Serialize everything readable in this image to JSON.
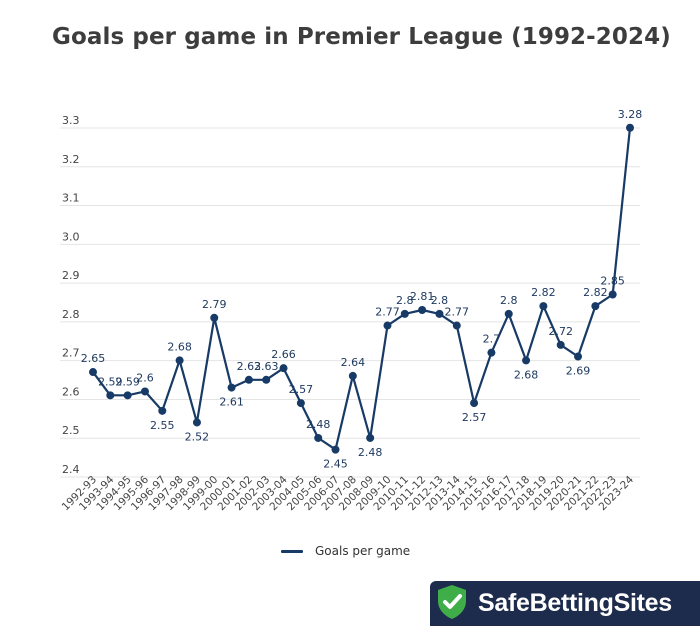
{
  "chart_data": {
    "type": "line",
    "title": "Goals per game in Premier League (1992-2024)",
    "xlabel": "",
    "ylabel": "",
    "ylim": [
      2.4,
      3.3
    ],
    "yticks": [
      "2.4",
      "2.5",
      "2.6",
      "2.7",
      "2.8",
      "2.9",
      "3.0",
      "3.1",
      "3.2",
      "3.3"
    ],
    "grid": true,
    "legend_position": "bottom-center",
    "categories": [
      "1992-93",
      "1993-94",
      "1994-95",
      "1995-96",
      "1996-97",
      "1997-98",
      "1998-99",
      "1999-00",
      "2000-01",
      "2001-02",
      "2002-03",
      "2003-04",
      "2004-05",
      "2005-06",
      "2006-07",
      "2007-08",
      "2008-09",
      "2009-10",
      "2010-11",
      "2011-12",
      "2012-13",
      "2013-14",
      "2014-15",
      "2015-16",
      "2016-17",
      "2017-18",
      "2018-19",
      "2019-20",
      "2020-21",
      "2021-22",
      "2022-23",
      "2023-24"
    ],
    "series": [
      {
        "name": "Goals per game",
        "color": "#173a66",
        "values": [
          2.65,
          2.59,
          2.59,
          2.6,
          2.55,
          2.68,
          2.52,
          2.79,
          2.61,
          2.63,
          2.63,
          2.66,
          2.57,
          2.48,
          2.45,
          2.64,
          2.48,
          2.77,
          2.8,
          2.81,
          2.8,
          2.77,
          2.57,
          2.7,
          2.8,
          2.68,
          2.82,
          2.72,
          2.69,
          2.82,
          2.85,
          3.28
        ],
        "labels": [
          "2.65",
          "2.59",
          "2.59",
          "2.6",
          "2.55",
          "2.68",
          "2.52",
          "2.79",
          "2.61",
          "2.63",
          "2.63",
          "2.66",
          "2.57",
          "2.48",
          "2.45",
          "2.64",
          "2.48",
          "2.77",
          "2.8",
          "2.81",
          "2.8",
          "2.77",
          "2.57",
          "2.7",
          "2.8",
          "2.68",
          "2.82",
          "2.72",
          "2.69",
          "2.82",
          "2.85",
          "3.28"
        ]
      }
    ]
  },
  "logo": {
    "text": "SafeBettingSites",
    "color": "#1d2b4c",
    "accent": "#3fae49"
  }
}
